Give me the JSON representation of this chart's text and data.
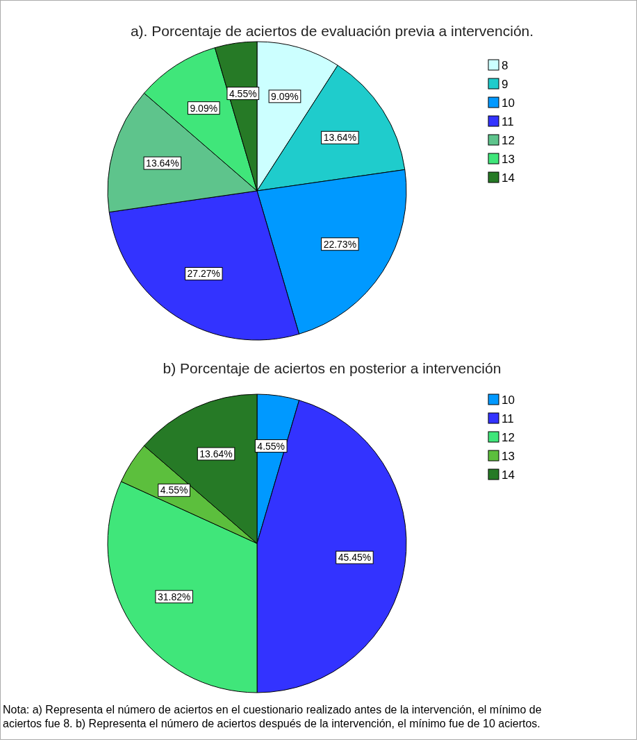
{
  "chart_data": [
    {
      "type": "pie",
      "title": "a). Porcentaje de aciertos de evaluación previa a intervención.",
      "categories": [
        "8",
        "9",
        "10",
        "11",
        "12",
        "13",
        "14"
      ],
      "values": [
        9.09,
        13.64,
        22.73,
        27.27,
        13.64,
        9.09,
        4.55
      ],
      "value_labels": [
        "9.09%",
        "13.64%",
        "22.73%",
        "27.27%",
        "13.64%",
        "9.09%",
        "4.55%"
      ],
      "colors": [
        "#ccffff",
        "#1fcccc",
        "#0099ff",
        "#3333ff",
        "#5ec48c",
        "#40e67a",
        "#267a26"
      ],
      "legend": "top right"
    },
    {
      "type": "pie",
      "title": "b) Porcentaje de aciertos en posterior a intervención",
      "categories": [
        "10",
        "11",
        "12",
        "13",
        "14"
      ],
      "values": [
        4.55,
        45.45,
        31.82,
        4.55,
        13.64
      ],
      "value_labels": [
        "4.55%",
        "45.45%",
        "31.82%",
        "4.55%",
        "13.64%"
      ],
      "colors": [
        "#0099ff",
        "#3333ff",
        "#40e67a",
        "#5cbf3d",
        "#267a26"
      ],
      "legend": "top right",
      "annotations": [
        "Nota: a) Representa el número de aciertos en el cuestionario realizado antes de la intervención, el mínimo de aciertos fue 8. b) Representa el número de aciertos después de la intervención, el mínimo fue de 10 aciertos."
      ]
    }
  ]
}
